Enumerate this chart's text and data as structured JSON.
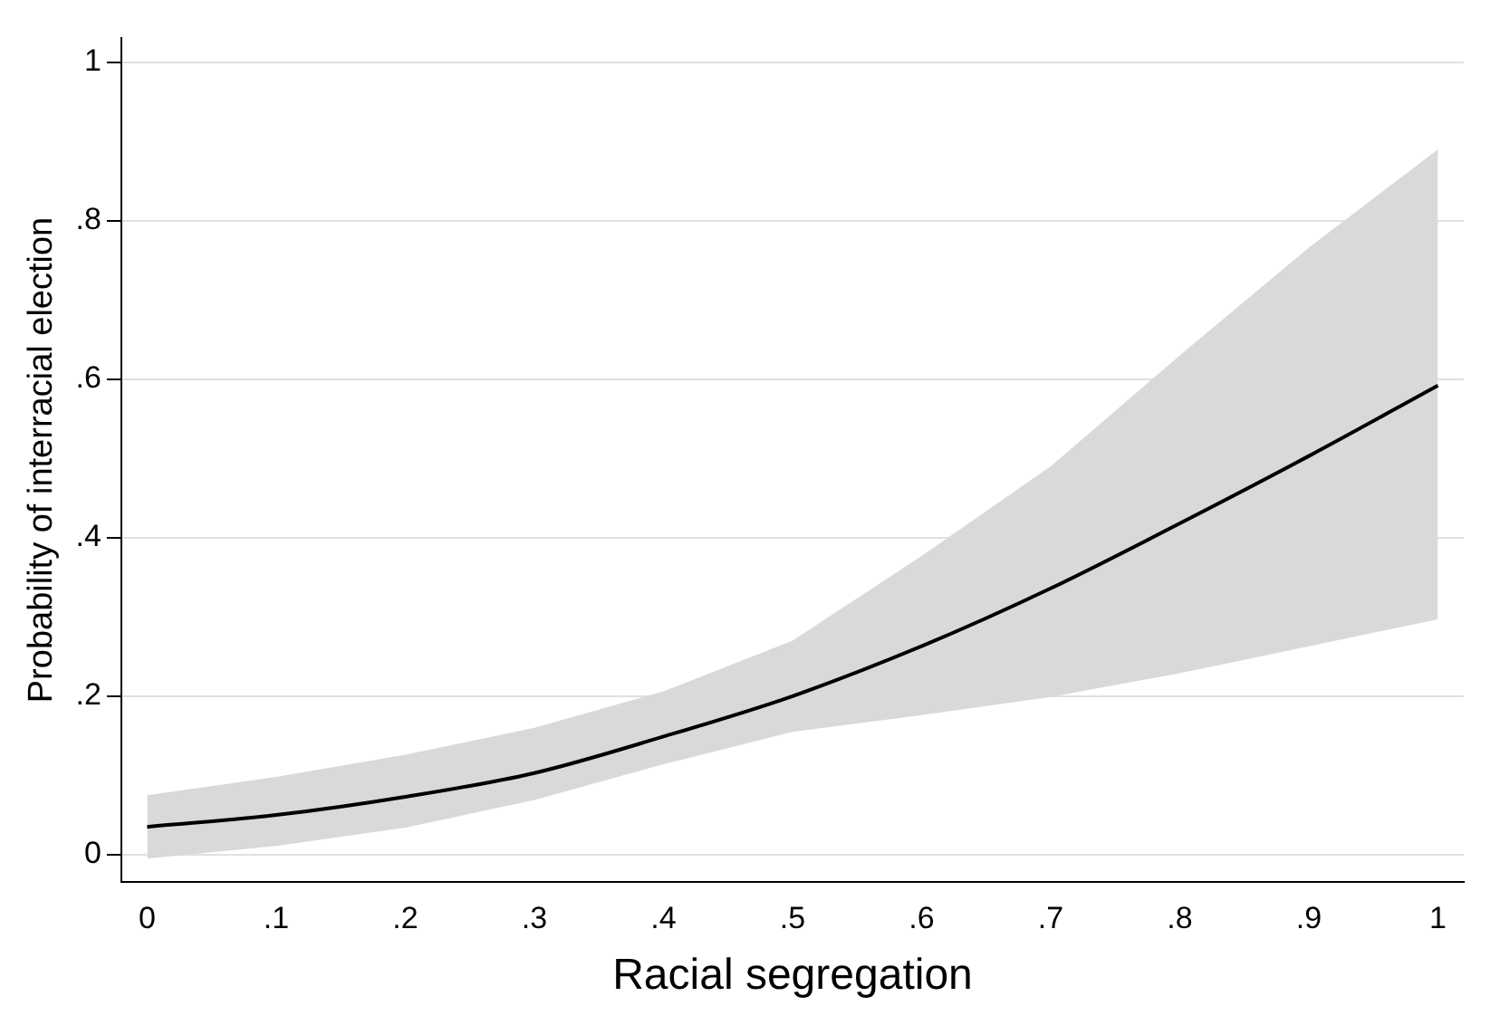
{
  "chart_data": {
    "type": "line",
    "xlabel": "Racial segregation",
    "ylabel": "Probability of interracial election",
    "x": [
      0,
      0.1,
      0.2,
      0.3,
      0.4,
      0.5,
      0.6,
      0.7,
      0.8,
      0.9,
      1
    ],
    "series": [
      {
        "color": "#000000",
        "values": [
          0.035,
          0.05,
          0.073,
          0.103,
          0.149,
          0.2,
          0.263,
          0.336,
          0.418,
          0.503,
          0.592
        ],
        "lower": [
          -0.005,
          0.011,
          0.034,
          0.069,
          0.114,
          0.155,
          0.176,
          0.199,
          0.229,
          0.263,
          0.297
        ],
        "upper": [
          0.075,
          0.098,
          0.126,
          0.16,
          0.206,
          0.27,
          0.377,
          0.49,
          0.63,
          0.766,
          0.89
        ]
      }
    ],
    "xlim": [
      -0.02,
      1.02
    ],
    "ylim": [
      -0.034,
      1.03
    ],
    "xticks": [
      0,
      {
        "value": 0.1,
        "label": ".1"
      },
      {
        "value": 0.2,
        "label": ".2"
      },
      {
        "value": 0.3,
        "label": ".3"
      },
      {
        "value": 0.4,
        "label": ".4"
      },
      {
        "value": 0.5,
        "label": ".5"
      },
      {
        "value": 0.6,
        "label": ".6"
      },
      {
        "value": 0.7,
        "label": ".7"
      },
      {
        "value": 0.8,
        "label": ".8"
      },
      {
        "value": 0.9,
        "label": ".9"
      },
      1
    ],
    "yticks": [
      0,
      {
        "value": 0.2,
        "label": ".2"
      },
      {
        "value": 0.4,
        "label": ".4"
      },
      {
        "value": 0.6,
        "label": ".6"
      },
      {
        "value": 0.8,
        "label": ".8"
      },
      1
    ],
    "grid": "y",
    "legend": false,
    "marker": "none",
    "line_style": "solid"
  }
}
